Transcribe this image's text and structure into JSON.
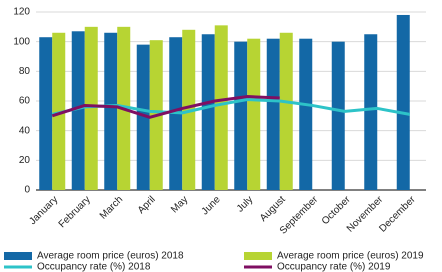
{
  "chart_data": {
    "type": "bar",
    "categories": [
      "January",
      "February",
      "March",
      "April",
      "May",
      "June",
      "July",
      "August",
      "September",
      "October",
      "November",
      "December"
    ],
    "series": [
      {
        "name": "Average room price (euros) 2018",
        "type": "bar",
        "color": "#1368a6",
        "values": [
          103,
          107,
          106,
          98,
          103,
          105,
          100,
          102,
          102,
          100,
          105,
          118
        ]
      },
      {
        "name": "Average room price (euros) 2019",
        "type": "bar",
        "color": "#b7d433",
        "values": [
          106,
          110,
          110,
          101,
          108,
          111,
          102,
          106,
          null,
          null,
          null,
          null
        ]
      },
      {
        "name": "Occupancy rate (%) 2018",
        "type": "line",
        "color": "#2dc3c8",
        "values": [
          51,
          56,
          57,
          53,
          52,
          57,
          61,
          60,
          57,
          53,
          55,
          51
        ]
      },
      {
        "name": "Occupancy rate (%) 2019",
        "type": "line",
        "color": "#7f0f62",
        "values": [
          50,
          57,
          56,
          49,
          55,
          60,
          63,
          62,
          null,
          null,
          null,
          null
        ]
      }
    ],
    "ylim": [
      0,
      120
    ],
    "yticks": [
      0,
      20,
      40,
      60,
      80,
      100,
      120
    ],
    "grid": true
  }
}
